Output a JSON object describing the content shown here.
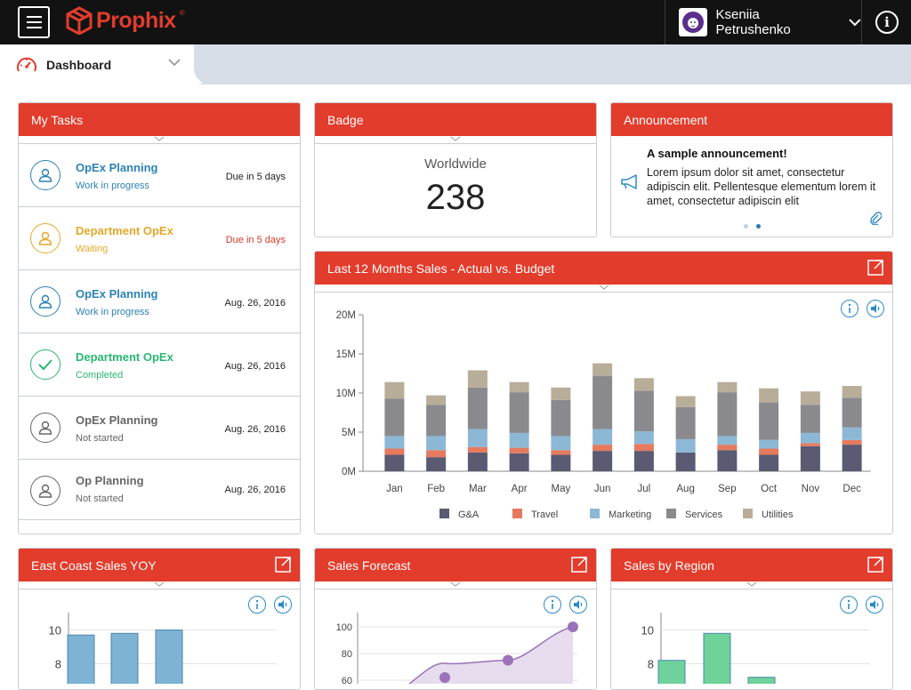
{
  "app": {
    "brand": "Prophix",
    "brand_mark": "®"
  },
  "user": {
    "name": "Kseniia Petrushenko"
  },
  "tabs": [
    {
      "label": "Dashboard"
    }
  ],
  "tasks": {
    "title": "My Tasks",
    "items": [
      {
        "title": "OpEx Planning",
        "status": "Work in progress",
        "due": "Due in 5 days",
        "color": "#2c82b5",
        "due_color": "#222222",
        "icon": "user-icon"
      },
      {
        "title": "Department OpEx",
        "status": "Waiting",
        "due": "Due in 5 days",
        "color": "#e4a82a",
        "due_color": "#d9392b",
        "icon": "user-icon"
      },
      {
        "title": "OpEx Planning",
        "status": "Work in progress",
        "due": "Aug. 26, 2016",
        "color": "#2c82b5",
        "due_color": "#222222",
        "icon": "user-icon"
      },
      {
        "title": "Department OpEx",
        "status": "Completed",
        "due": "Aug. 26, 2016",
        "color": "#2bb673",
        "due_color": "#222222",
        "icon": "check-icon"
      },
      {
        "title": "OpEx Planning",
        "status": "Not started",
        "due": "Aug. 26, 2016",
        "color": "#666666",
        "due_color": "#222222",
        "icon": "user-icon"
      },
      {
        "title": "Op Planning",
        "status": "Not started",
        "due": "Aug. 26, 2016",
        "color": "#666666",
        "due_color": "#222222",
        "icon": "user-icon"
      }
    ]
  },
  "badge": {
    "title": "Badge",
    "label": "Worldwide",
    "value": "238"
  },
  "announcement": {
    "title": "Announcement",
    "headline": "A sample announcement!",
    "body": "Lorem ipsum dolor sit amet, consectetur adipiscin elit. Pellentesque elementum lorem it amet, consectetur adipiscin elit"
  },
  "sales": {
    "title": "Last 12 Months Sales - Actual vs. Budget",
    "legend": [
      "G&A",
      "Travel",
      "Marketing",
      "Services",
      "Utilities"
    ]
  },
  "east_coast": {
    "title": "East Coast Sales YOY"
  },
  "forecast": {
    "title": "Sales Forecast"
  },
  "region": {
    "title": "Sales by Region"
  },
  "colors": {
    "accent": "#e23c2c",
    "link": "#2c8bc7"
  },
  "chart_data": [
    {
      "type": "bar",
      "stacked": true,
      "title": "Last 12 Months Sales - Actual vs. Budget",
      "categories": [
        "Jan",
        "Feb",
        "Mar",
        "Apr",
        "May",
        "Jun",
        "Jul",
        "Aug",
        "Sep",
        "Oct",
        "Nov",
        "Dec"
      ],
      "yticks": [
        "0M",
        "5M",
        "10M",
        "15M",
        "20M"
      ],
      "ylim": [
        0,
        20
      ],
      "grid": false,
      "legend": "bottom",
      "series": [
        {
          "name": "G&A",
          "color": "#5a5a72",
          "values": [
            2.1,
            1.8,
            2.4,
            2.3,
            2.1,
            2.6,
            2.6,
            2.4,
            2.7,
            2.1,
            3.2,
            3.4
          ]
        },
        {
          "name": "Travel",
          "color": "#e57a5e",
          "values": [
            0.8,
            0.9,
            0.7,
            0.7,
            0.6,
            0.8,
            0.9,
            0.0,
            0.7,
            0.8,
            0.4,
            0.6
          ]
        },
        {
          "name": "Marketing",
          "color": "#8cb8d6",
          "values": [
            1.6,
            1.8,
            2.3,
            1.9,
            1.8,
            2.0,
            1.6,
            1.7,
            1.1,
            1.1,
            1.3,
            1.6
          ]
        },
        {
          "name": "Services",
          "color": "#8a8a8e",
          "values": [
            4.8,
            4.0,
            5.3,
            5.2,
            4.6,
            6.8,
            5.2,
            4.1,
            5.6,
            4.8,
            3.6,
            3.8
          ]
        },
        {
          "name": "Utilities",
          "color": "#b8ad98",
          "values": [
            2.1,
            1.2,
            2.2,
            1.3,
            1.6,
            1.6,
            1.6,
            1.4,
            1.3,
            1.8,
            1.7,
            1.5
          ]
        }
      ]
    },
    {
      "type": "bar",
      "title": "East Coast Sales YOY",
      "yticks": [
        "8",
        "10"
      ],
      "values": [
        9.7,
        9.8,
        10.0
      ],
      "color": "#7eb3d4"
    },
    {
      "type": "line",
      "title": "Sales Forecast",
      "yticks": [
        "60",
        "80",
        "100"
      ],
      "values": [
        62,
        75,
        100
      ]
    },
    {
      "type": "bar",
      "title": "Sales by Region",
      "yticks": [
        "8",
        "10"
      ],
      "values": [
        8.2,
        9.8,
        7.2
      ],
      "color": "#6fd29b"
    }
  ]
}
